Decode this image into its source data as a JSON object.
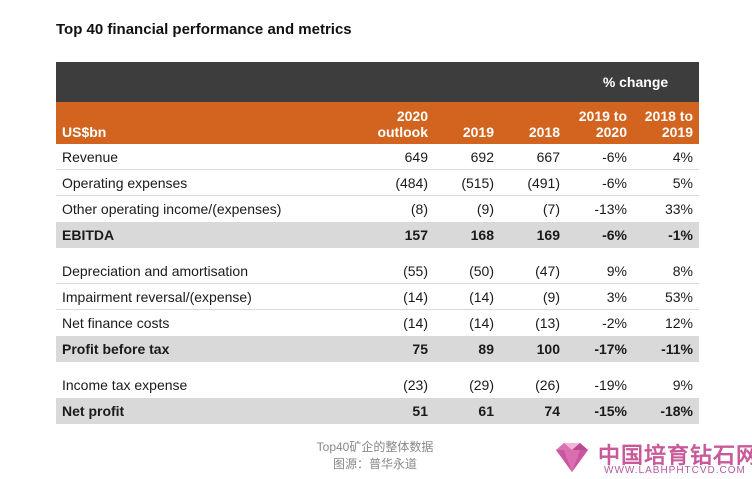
{
  "title": "Top 40 financial performance and metrics",
  "header": {
    "pct_change": "% change",
    "unit_label": "US$bn",
    "col1_line1": "2020",
    "col1_line2": "outlook",
    "col2": "2019",
    "col3": "2018",
    "col4_line1": "2019 to",
    "col4_line2": "2020",
    "col5_line1": "2018 to",
    "col5_line2": "2019"
  },
  "rows": [
    {
      "label": "Revenue",
      "c1": "649",
      "c2": "692",
      "c3": "667",
      "c4": "-6%",
      "c5": "4%"
    },
    {
      "label": "Operating expenses",
      "c1": "(484)",
      "c2": "(515)",
      "c3": "(491)",
      "c4": "-6%",
      "c5": "5%"
    },
    {
      "label": "Other operating income/(expenses)",
      "c1": "(8)",
      "c2": "(9)",
      "c3": "(7)",
      "c4": "-13%",
      "c5": "33%"
    },
    {
      "label": "EBITDA",
      "c1": "157",
      "c2": "168",
      "c3": "169",
      "c4": "-6%",
      "c5": "-1%"
    },
    {
      "label": "Depreciation and amortisation",
      "c1": "(55)",
      "c2": "(50)",
      "c3": "(47)",
      "c4": "9%",
      "c5": "8%"
    },
    {
      "label": "Impairment reversal/(expense)",
      "c1": "(14)",
      "c2": "(14)",
      "c3": "(9)",
      "c4": "3%",
      "c5": "53%"
    },
    {
      "label": "Net finance costs",
      "c1": "(14)",
      "c2": "(14)",
      "c3": "(13)",
      "c4": "-2%",
      "c5": "12%"
    },
    {
      "label": "Profit before tax",
      "c1": "75",
      "c2": "89",
      "c3": "100",
      "c4": "-17%",
      "c5": "-11%"
    },
    {
      "label": "Income tax expense",
      "c1": "(23)",
      "c2": "(29)",
      "c3": "(26)",
      "c4": "-19%",
      "c5": "9%"
    },
    {
      "label": "Net profit",
      "c1": "51",
      "c2": "61",
      "c3": "74",
      "c4": "-15%",
      "c5": "-18%"
    }
  ],
  "caption": {
    "line1": "Top40矿企的整体数据",
    "line2": "图源：普华永道"
  },
  "watermark": {
    "name": "中国培育钻石网",
    "url": "WWW.LABHPHTCVD.COM",
    "icon": "diamond-logo"
  },
  "colors": {
    "header_dark": "#3d3d3d",
    "header_accent": "#d2641f",
    "total_row": "#d9d9d9"
  }
}
